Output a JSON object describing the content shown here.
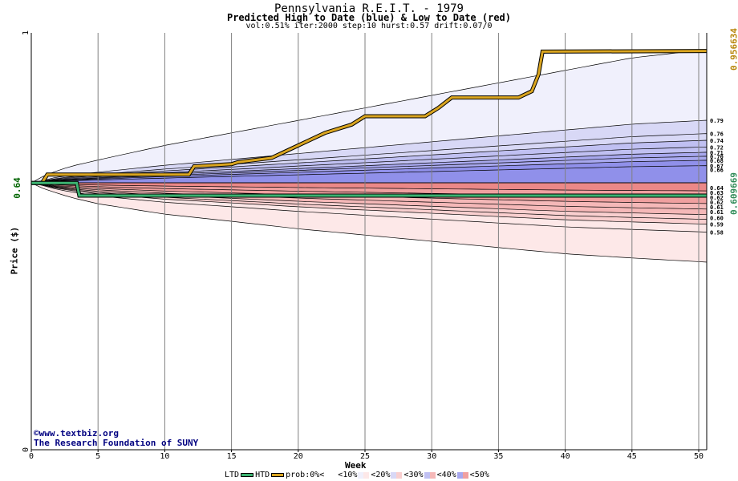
{
  "chart_data": {
    "type": "area",
    "title": "Pennsylvania R.E.I.T. - 1979",
    "subtitle": "Predicted High to Date (blue) &  Low to Date (red)",
    "params": "vol:0.51% iter:2000 step:10 hurst:0.57 drift:0.07/0",
    "xlabel": "Week",
    "ylabel": "Price ($)",
    "xlim": [
      0,
      50.6
    ],
    "ylim": [
      0,
      1
    ],
    "x_ticks": [
      0,
      5,
      10,
      15,
      20,
      25,
      30,
      35,
      40,
      45,
      50
    ],
    "y_ticks": [
      0,
      1
    ],
    "start_value": 0.64,
    "start_label": "0.64",
    "high_end_value": 0.956634,
    "high_end_label": "0.956634",
    "low_end_value": 0.609669,
    "low_end_label": "0.609669",
    "high_band_end_labels": [
      "0.79",
      "0.76",
      "0.74",
      "0.72",
      "0.71",
      "0.70",
      "0.68",
      "0.67",
      "0.66"
    ],
    "low_band_end_labels": [
      "0.64",
      "0.63",
      "0.62",
      "0.62",
      "0.61",
      "0.61",
      "0.60",
      "0.59",
      "0.58"
    ],
    "envelope": {
      "x": [
        0,
        1,
        2,
        3,
        5,
        10,
        15,
        20,
        25,
        30,
        35,
        40,
        45,
        50.6
      ],
      "upper": [
        0.64,
        0.658,
        0.67,
        0.68,
        0.695,
        0.73,
        0.76,
        0.79,
        0.82,
        0.85,
        0.88,
        0.91,
        0.94,
        0.96
      ],
      "lower": [
        0.64,
        0.625,
        0.615,
        0.605,
        0.59,
        0.565,
        0.548,
        0.53,
        0.515,
        0.5,
        0.485,
        0.47,
        0.46,
        0.45
      ]
    },
    "htd_series": {
      "name": "HTD",
      "x": [
        0,
        0.8,
        1.2,
        11.8,
        12.2,
        15,
        15.5,
        18,
        19,
        21,
        22,
        24,
        25,
        29.5,
        30.5,
        31.5,
        36.5,
        37.5,
        38,
        38.3,
        50.6
      ],
      "y": [
        0.64,
        0.64,
        0.66,
        0.66,
        0.68,
        0.685,
        0.69,
        0.7,
        0.715,
        0.745,
        0.76,
        0.78,
        0.8,
        0.8,
        0.82,
        0.845,
        0.845,
        0.86,
        0.9,
        0.955,
        0.956634
      ]
    },
    "ltd_series": {
      "name": "LTD",
      "x": [
        0,
        3.4,
        3.6,
        50.6
      ],
      "y": [
        0.64,
        0.64,
        0.609669,
        0.609669
      ]
    },
    "legend": {
      "ltd": "LTD",
      "htd": "HTD",
      "prob": "prob:0%<",
      "bins": [
        "<10%",
        "<20%",
        "<30%",
        "<40%",
        "<50%"
      ]
    },
    "colors": {
      "htd": "#daa520",
      "ltd": "#3cb371",
      "blue_bands": [
        "#f0f0fc",
        "#d8d8f6",
        "#c0c0f2",
        "#a8a8ee",
        "#9090ea"
      ],
      "red_bands": [
        "#fde8e8",
        "#f9cfcf",
        "#f5b8b8",
        "#f0a0a0",
        "#eb8888"
      ],
      "grid": "#808080"
    }
  },
  "credits": {
    "site": "©www.textbiz.org",
    "org": "The Research Foundation of SUNY"
  }
}
